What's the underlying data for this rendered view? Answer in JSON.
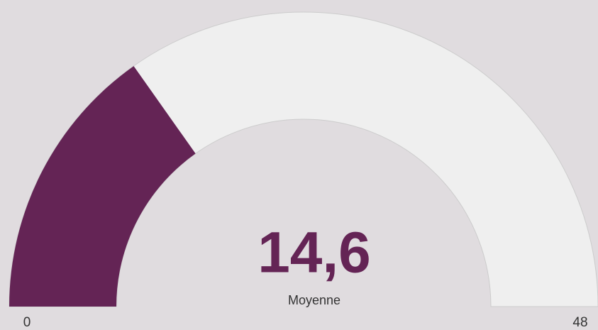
{
  "chart_data": {
    "type": "gauge",
    "values": [
      14.6
    ],
    "value_labels": [
      "14,6"
    ],
    "label": "Moyenne",
    "ylim": [
      0,
      48
    ],
    "yticks": [
      0,
      48
    ],
    "color": "#642455",
    "track_color": "#efefef"
  }
}
